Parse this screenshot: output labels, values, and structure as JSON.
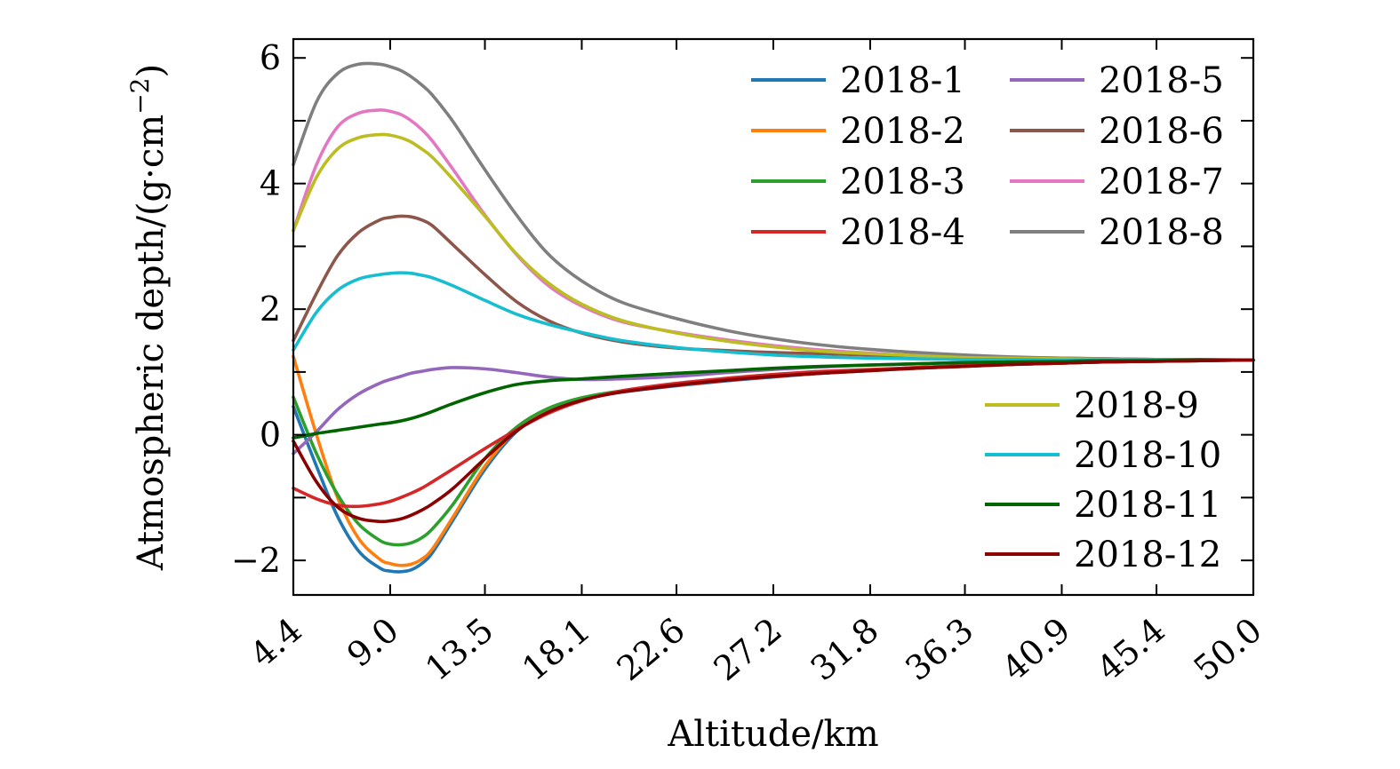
{
  "chart_data": {
    "type": "line",
    "title": "",
    "xlabel": "Altitude/km",
    "ylabel": "Atmospheric depth/(g·cm",
    "ylabel_superscript": "−2",
    "ylabel_close": ")",
    "xlim": [
      4.4,
      50.0
    ],
    "ylim": [
      -2.55,
      6.3
    ],
    "x_ticks": [
      4.4,
      9.0,
      13.5,
      18.1,
      22.6,
      27.2,
      31.8,
      36.3,
      40.9,
      45.4,
      50.0
    ],
    "x_tick_labels": [
      "4.4",
      "9.0",
      "13.5",
      "18.1",
      "22.6",
      "27.2",
      "31.8",
      "36.3",
      "40.9",
      "45.4",
      "50.0"
    ],
    "y_major_ticks": [
      -2,
      0,
      2,
      4,
      6
    ],
    "y_tick_labels": [
      "−2",
      "0",
      "2",
      "4",
      "6"
    ],
    "y_minor_ticks": [
      -1,
      1,
      3,
      5
    ],
    "grid": false,
    "legend_placement": [
      "top-right (two columns)",
      "right (one column)"
    ],
    "x": [
      4.4,
      5.5,
      6.5,
      7.5,
      8.5,
      9.0,
      9.5,
      10.0,
      10.5,
      11.0,
      12.0,
      13.5,
      15.0,
      16.5,
      18.1,
      20.0,
      22.6,
      25.0,
      27.2,
      29.5,
      31.8,
      34.0,
      36.3,
      38.5,
      40.9,
      43.0,
      45.4,
      47.5,
      50.0
    ],
    "series": [
      {
        "name": "2018-1",
        "color": "#1f77b4",
        "values": [
          0.45,
          -0.5,
          -1.3,
          -1.85,
          -2.12,
          -2.17,
          -2.18,
          -2.15,
          -2.05,
          -1.88,
          -1.35,
          -0.55,
          0.05,
          0.38,
          0.56,
          0.68,
          0.78,
          0.86,
          0.92,
          0.98,
          1.02,
          1.06,
          1.09,
          1.12,
          1.14,
          1.16,
          1.17,
          1.18,
          1.19
        ]
      },
      {
        "name": "2018-2",
        "color": "#ff7f0e",
        "values": [
          1.25,
          0.0,
          -1.0,
          -1.65,
          -1.98,
          -2.05,
          -2.08,
          -2.06,
          -1.98,
          -1.82,
          -1.3,
          -0.5,
          0.08,
          0.4,
          0.57,
          0.69,
          0.79,
          0.87,
          0.93,
          0.98,
          1.02,
          1.06,
          1.09,
          1.12,
          1.14,
          1.16,
          1.17,
          1.18,
          1.19
        ]
      },
      {
        "name": "2018-3",
        "color": "#2ca02c",
        "values": [
          0.6,
          -0.3,
          -0.95,
          -1.42,
          -1.68,
          -1.74,
          -1.75,
          -1.72,
          -1.64,
          -1.5,
          -1.1,
          -0.38,
          0.12,
          0.42,
          0.59,
          0.7,
          0.8,
          0.88,
          0.94,
          0.99,
          1.03,
          1.07,
          1.1,
          1.12,
          1.14,
          1.16,
          1.17,
          1.18,
          1.19
        ]
      },
      {
        "name": "2018-4",
        "color": "#d62728",
        "values": [
          -0.85,
          -1.02,
          -1.12,
          -1.14,
          -1.1,
          -1.06,
          -1.0,
          -0.93,
          -0.85,
          -0.75,
          -0.54,
          -0.22,
          0.08,
          0.34,
          0.54,
          0.7,
          0.82,
          0.9,
          0.96,
          1.01,
          1.04,
          1.07,
          1.1,
          1.12,
          1.14,
          1.16,
          1.17,
          1.18,
          1.19
        ]
      },
      {
        "name": "2018-5",
        "color": "#9467bd",
        "values": [
          -0.3,
          0.05,
          0.4,
          0.65,
          0.82,
          0.88,
          0.93,
          0.98,
          1.01,
          1.04,
          1.07,
          1.05,
          0.99,
          0.92,
          0.88,
          0.89,
          0.93,
          0.99,
          1.04,
          1.08,
          1.11,
          1.13,
          1.15,
          1.16,
          1.17,
          1.18,
          1.18,
          1.19,
          1.19
        ]
      },
      {
        "name": "2018-6",
        "color": "#8c564b",
        "values": [
          1.5,
          2.25,
          2.85,
          3.22,
          3.42,
          3.46,
          3.48,
          3.47,
          3.42,
          3.33,
          3.02,
          2.55,
          2.12,
          1.82,
          1.62,
          1.48,
          1.38,
          1.34,
          1.31,
          1.29,
          1.27,
          1.25,
          1.24,
          1.23,
          1.22,
          1.21,
          1.2,
          1.2,
          1.19
        ]
      },
      {
        "name": "2018-7",
        "color": "#e377c2",
        "values": [
          3.25,
          4.3,
          4.9,
          5.12,
          5.17,
          5.15,
          5.1,
          5.0,
          4.86,
          4.68,
          4.22,
          3.5,
          2.87,
          2.38,
          2.05,
          1.8,
          1.63,
          1.51,
          1.42,
          1.35,
          1.3,
          1.26,
          1.24,
          1.22,
          1.21,
          1.2,
          1.19,
          1.19,
          1.19
        ]
      },
      {
        "name": "2018-8",
        "color": "#7f7f7f",
        "values": [
          4.3,
          5.3,
          5.75,
          5.9,
          5.9,
          5.86,
          5.8,
          5.7,
          5.57,
          5.41,
          4.98,
          4.22,
          3.5,
          2.88,
          2.45,
          2.11,
          1.85,
          1.66,
          1.53,
          1.43,
          1.36,
          1.31,
          1.27,
          1.24,
          1.22,
          1.21,
          1.2,
          1.19,
          1.19
        ]
      },
      {
        "name": "2018-9",
        "color": "#bcbd22",
        "values": [
          3.25,
          4.1,
          4.55,
          4.73,
          4.78,
          4.77,
          4.73,
          4.66,
          4.55,
          4.42,
          4.06,
          3.48,
          2.88,
          2.42,
          2.08,
          1.82,
          1.62,
          1.49,
          1.4,
          1.33,
          1.29,
          1.26,
          1.23,
          1.22,
          1.21,
          1.2,
          1.19,
          1.19,
          1.19
        ]
      },
      {
        "name": "2018-10",
        "color": "#17becf",
        "values": [
          1.35,
          1.95,
          2.3,
          2.48,
          2.55,
          2.57,
          2.58,
          2.57,
          2.54,
          2.5,
          2.37,
          2.14,
          1.92,
          1.76,
          1.63,
          1.5,
          1.39,
          1.32,
          1.27,
          1.24,
          1.22,
          1.21,
          1.2,
          1.2,
          1.19,
          1.19,
          1.19,
          1.19,
          1.19
        ]
      },
      {
        "name": "2018-11",
        "color": "#006400",
        "values": [
          -0.05,
          0.02,
          0.07,
          0.12,
          0.17,
          0.19,
          0.22,
          0.26,
          0.31,
          0.37,
          0.5,
          0.67,
          0.8,
          0.86,
          0.89,
          0.93,
          0.98,
          1.02,
          1.06,
          1.09,
          1.11,
          1.13,
          1.15,
          1.16,
          1.17,
          1.18,
          1.18,
          1.19,
          1.19
        ]
      },
      {
        "name": "2018-12",
        "color": "#8b0000",
        "values": [
          -0.1,
          -0.75,
          -1.15,
          -1.33,
          -1.38,
          -1.37,
          -1.34,
          -1.28,
          -1.2,
          -1.1,
          -0.85,
          -0.38,
          0.06,
          0.36,
          0.55,
          0.68,
          0.79,
          0.87,
          0.93,
          0.98,
          1.02,
          1.06,
          1.09,
          1.12,
          1.14,
          1.16,
          1.17,
          1.18,
          1.19
        ]
      }
    ]
  }
}
